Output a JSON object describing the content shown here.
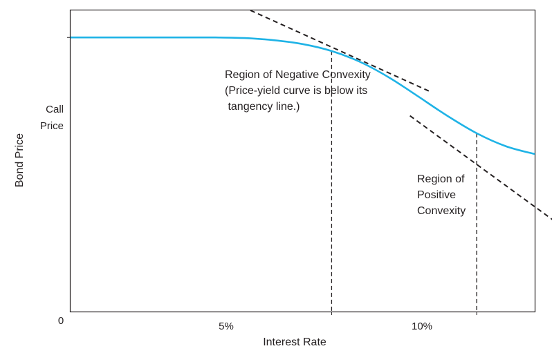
{
  "chart_data": {
    "type": "line",
    "title": "",
    "xlabel": "Interest Rate",
    "ylabel": "Bond Price",
    "origin_label": "0",
    "y_tick_label": [
      "Call",
      "Price"
    ],
    "x_ticks": [
      {
        "label": "5%",
        "value": 5
      },
      {
        "label": "10%",
        "value": 10
      }
    ],
    "xlim": [
      -4,
      12
    ],
    "ylim": [
      0,
      100
    ],
    "call_price": 91,
    "grid": false,
    "legend": "none",
    "colors": {
      "curve": "#1fb3e6",
      "frame": "#231f20",
      "dash": "#231f20"
    },
    "series": [
      {
        "x": [
          -4,
          -3,
          -2,
          -1,
          0,
          1,
          2,
          3,
          4,
          5,
          6,
          7,
          8,
          9,
          10,
          11,
          12
        ],
        "values": [
          91,
          91,
          91,
          91,
          91,
          91,
          90.8,
          90.1,
          88.8,
          86.5,
          82.8,
          77.6,
          71.3,
          64.9,
          59.2,
          54.9,
          52.3
        ]
      }
    ],
    "tangents": [
      {
        "x": [
          2.2,
          8.4
        ],
        "values": [
          100,
          73
        ]
      },
      {
        "x": [
          7.7,
          13.4
        ],
        "values": [
          65,
          25
        ]
      }
    ],
    "drop_lines": [
      {
        "x": 5,
        "y": 86.5
      },
      {
        "x": 10,
        "y": 59.2
      }
    ],
    "annotations": [
      {
        "lines": [
          "Region of Negative Convexity",
          "(Price-yield curve is below its",
          " tangency line.)"
        ]
      },
      {
        "lines": [
          "Region of",
          "Positive",
          "Convexity"
        ]
      }
    ]
  }
}
